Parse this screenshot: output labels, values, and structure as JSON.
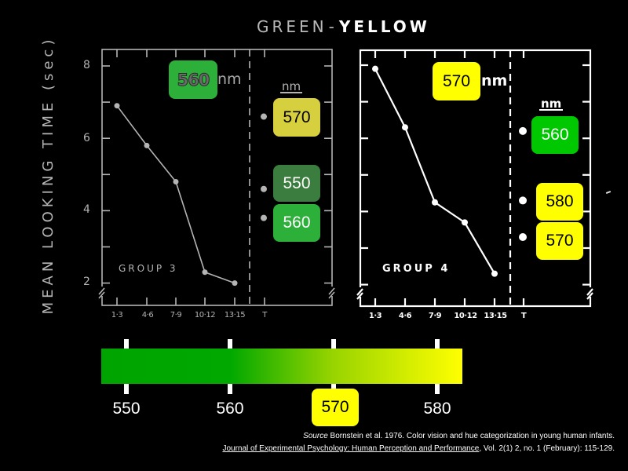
{
  "title": {
    "green": "GREEN",
    "dash": "-",
    "yellow": "YELLOW"
  },
  "y_axis": {
    "label": "MEAN LOOKING TIME (sec)",
    "ticks": [
      "8",
      "6",
      "4",
      "2"
    ]
  },
  "x_axis": {
    "ticks": [
      "1·3",
      "4·6",
      "7·9",
      "10·12",
      "13·15",
      "T"
    ]
  },
  "left_panel": {
    "group_label": "GROUP 3",
    "habituation": {
      "value": "560",
      "unit": "nm",
      "color": "#2db03a"
    },
    "test_header": "nm",
    "test_badges": [
      {
        "value": "570",
        "color": "#d6cf3e",
        "text_color": "#000000"
      },
      {
        "value": "550",
        "color": "#3b7d3e",
        "text_color": "#ffffff"
      },
      {
        "value": "560",
        "color": "#2db03a",
        "text_color": "#ffffff"
      }
    ],
    "line_color": "#b4b4b4"
  },
  "right_panel": {
    "group_label": "GROUP 4",
    "habituation": {
      "value": "570",
      "unit": "nm",
      "color": "#ffff00"
    },
    "test_header": "nm",
    "test_badges": [
      {
        "value": "560",
        "color": "#00c800",
        "text_color": "#ffffff"
      },
      {
        "value": "580",
        "color": "#ffff00",
        "text_color": "#000000"
      },
      {
        "value": "570",
        "color": "#ffff00",
        "text_color": "#000000"
      }
    ],
    "line_color": "#ffffff"
  },
  "spectrum": {
    "labels": [
      "550",
      "560",
      "570",
      "580"
    ],
    "highlight": "570",
    "gradient_colors": [
      "#00a400",
      "#00a800",
      "#99d400",
      "#ffff00"
    ]
  },
  "source": {
    "label": "Source",
    "text": " Bornstein et al. 1976. Color vision and hue categorization in young human infants.",
    "journal": "Journal of Experimental Psychology: Human Perception and Performance",
    "details": ", Vol. 2(1) 2, no. 1 (February): 115-129."
  },
  "chart_data": [
    {
      "type": "line",
      "title": "GREEN - YELLOW",
      "subtitle": "GROUP 3",
      "xlabel": "",
      "ylabel": "MEAN LOOKING TIME (sec)",
      "habituation_stimulus": "560 nm",
      "categories": [
        "1·3",
        "4·6",
        "7·9",
        "10·12",
        "13·15"
      ],
      "series": [
        {
          "name": "Habituation 560 nm",
          "values": [
            6.9,
            5.8,
            4.8,
            2.3,
            2.0
          ]
        }
      ],
      "test_trials": [
        {
          "x": "T",
          "label": "570 nm",
          "value": 6.6
        },
        {
          "x": "T",
          "label": "550 nm",
          "value": 4.6
        },
        {
          "x": "T",
          "label": "560 nm",
          "value": 3.8
        }
      ],
      "yticks": [
        2,
        4,
        6,
        8
      ],
      "ylim": [
        1.4,
        8.5
      ],
      "grid": false
    },
    {
      "type": "line",
      "title": "GREEN - YELLOW",
      "subtitle": "GROUP 4",
      "xlabel": "",
      "ylabel": "MEAN LOOKING TIME (sec)",
      "habituation_stimulus": "570 nm",
      "categories": [
        "1·3",
        "4·6",
        "7·9",
        "10·12",
        "13·15"
      ],
      "series": [
        {
          "name": "Habituation 570 nm",
          "values": [
            7.9,
            6.3,
            4.25,
            3.7,
            2.3
          ]
        }
      ],
      "test_trials": [
        {
          "x": "T",
          "label": "560 nm",
          "value": 6.2
        },
        {
          "x": "T",
          "label": "580 nm",
          "value": 4.3
        },
        {
          "x": "T",
          "label": "570 nm",
          "value": 3.3
        }
      ],
      "yticks": [
        2,
        4,
        6,
        8
      ],
      "ylim": [
        1.4,
        8.5
      ],
      "grid": false
    }
  ]
}
